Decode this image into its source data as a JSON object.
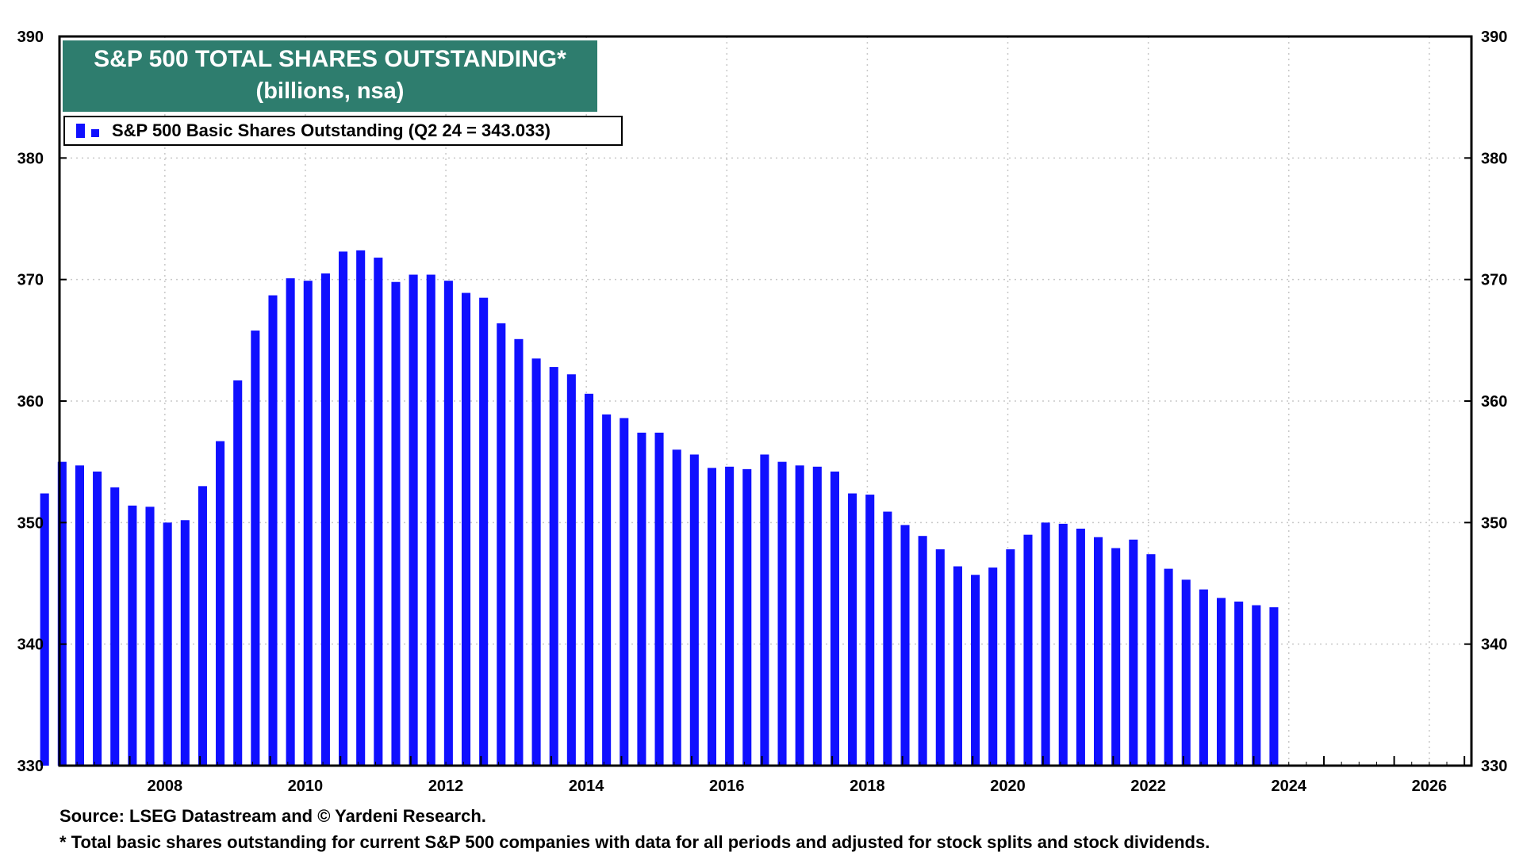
{
  "chart_data": {
    "type": "bar",
    "title": "S&P 500 TOTAL SHARES OUTSTANDING*",
    "subtitle": "(billions, nsa)",
    "legend": "S&P 500 Basic Shares Outstanding (Q2 24 = 343.033)",
    "series_color": "#1010ff",
    "title_bg_color": "#2e7d6e",
    "ylim": [
      330,
      390
    ],
    "y_ticks": [
      330,
      340,
      350,
      360,
      370,
      380,
      390
    ],
    "xlim": [
      2007.0,
      2027.1
    ],
    "x_ticks": [
      "2008",
      "2010",
      "2012",
      "2014",
      "2016",
      "2018",
      "2020",
      "2022",
      "2024",
      "2026"
    ],
    "grid": true,
    "x": [
      2006.75,
      2007.0,
      2007.25,
      2007.5,
      2007.75,
      2008.0,
      2008.25,
      2008.5,
      2008.75,
      2009.0,
      2009.25,
      2009.5,
      2009.75,
      2010.0,
      2010.25,
      2010.5,
      2010.75,
      2011.0,
      2011.25,
      2011.5,
      2011.75,
      2012.0,
      2012.25,
      2012.5,
      2012.75,
      2013.0,
      2013.25,
      2013.5,
      2013.75,
      2014.0,
      2014.25,
      2014.5,
      2014.75,
      2015.0,
      2015.25,
      2015.5,
      2015.75,
      2016.0,
      2016.25,
      2016.5,
      2016.75,
      2017.0,
      2017.25,
      2017.5,
      2017.75,
      2018.0,
      2018.25,
      2018.5,
      2018.75,
      2019.0,
      2019.25,
      2019.5,
      2019.75,
      2020.0,
      2020.25,
      2020.5,
      2020.75,
      2021.0,
      2021.25,
      2021.5,
      2021.75,
      2022.0,
      2022.25,
      2022.5,
      2022.75,
      2023.0,
      2023.25,
      2023.5,
      2023.75,
      2024.0,
      2024.25
    ],
    "values": [
      352.4,
      355.0,
      354.7,
      354.2,
      352.9,
      351.4,
      351.3,
      350.0,
      350.2,
      353.0,
      356.7,
      361.7,
      365.8,
      368.7,
      370.1,
      369.9,
      370.5,
      372.3,
      372.4,
      371.8,
      369.8,
      370.4,
      370.4,
      369.9,
      368.9,
      368.5,
      366.4,
      365.1,
      363.5,
      362.8,
      362.2,
      360.6,
      358.9,
      358.6,
      357.4,
      357.4,
      356.0,
      355.6,
      354.5,
      354.6,
      354.4,
      355.6,
      355.0,
      354.7,
      354.6,
      354.2,
      352.4,
      352.3,
      350.9,
      349.8,
      348.9,
      347.8,
      346.4,
      345.7,
      346.3,
      347.8,
      349.0,
      350.0,
      349.9,
      349.5,
      348.8,
      347.9,
      348.6,
      347.4,
      346.2,
      345.3,
      344.5,
      343.8,
      343.5,
      343.2,
      343.033
    ]
  },
  "footer": {
    "source": "Source: LSEG Datastream and © Yardeni Research.",
    "note": "* Total basic shares outstanding for current S&P 500 companies with data for all periods and adjusted for stock splits and stock dividends."
  }
}
